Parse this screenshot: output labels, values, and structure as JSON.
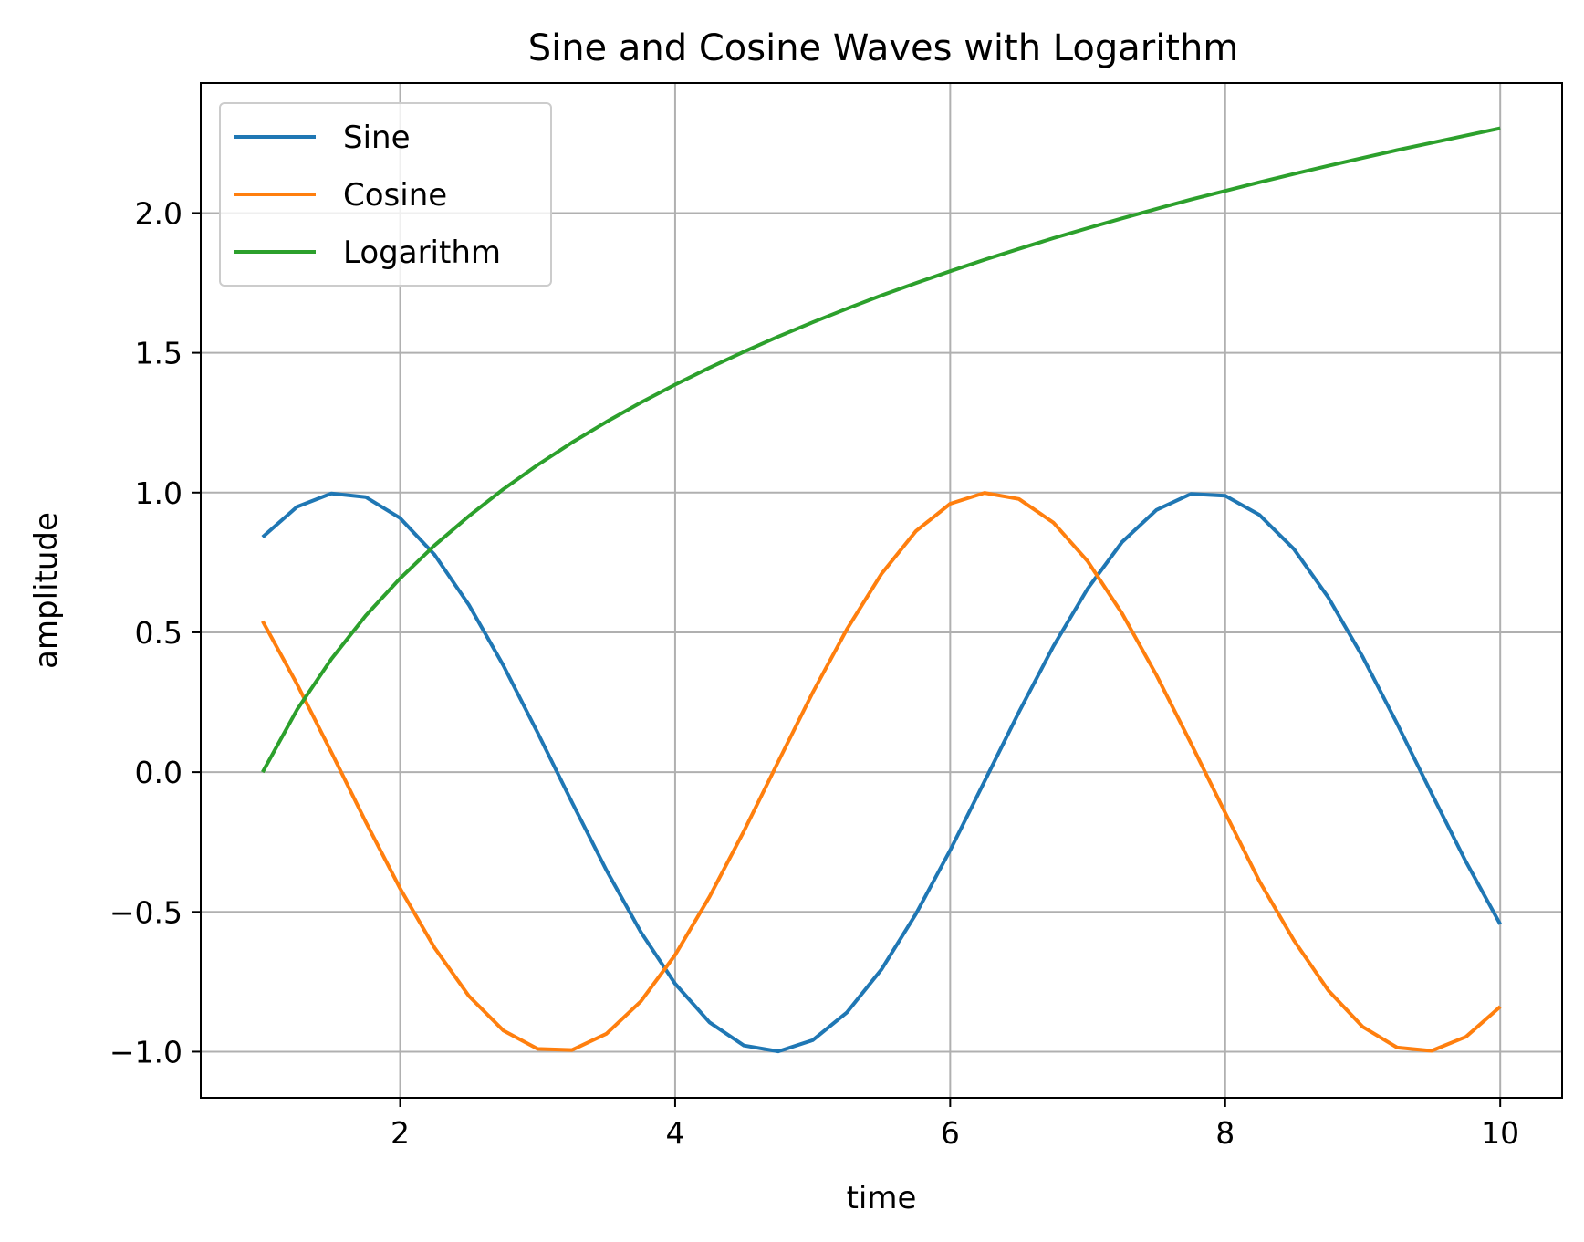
{
  "chart_data": {
    "type": "line",
    "title": "Sine and Cosine Waves with Logarithm",
    "xlabel": "time",
    "ylabel": "amplitude",
    "xlim": [
      0.55,
      10.45
    ],
    "ylim": [
      -1.165,
      2.465
    ],
    "grid": true,
    "legend_position": "upper-left",
    "x_ticks": [
      2,
      4,
      6,
      8,
      10
    ],
    "y_ticks": [
      -1.0,
      -0.5,
      0.0,
      0.5,
      1.0,
      1.5,
      2.0
    ],
    "x_tick_labels": [
      "2",
      "4",
      "6",
      "8",
      "10"
    ],
    "y_tick_labels": [
      "−1.0",
      "−0.5",
      "0.0",
      "0.5",
      "1.0",
      "1.5",
      "2.0"
    ],
    "x": [
      1.0,
      1.25,
      1.5,
      1.75,
      2.0,
      2.25,
      2.5,
      2.75,
      3.0,
      3.25,
      3.5,
      3.75,
      4.0,
      4.25,
      4.5,
      4.75,
      5.0,
      5.25,
      5.5,
      5.75,
      6.0,
      6.25,
      6.5,
      6.75,
      7.0,
      7.25,
      7.5,
      7.75,
      8.0,
      8.25,
      8.5,
      8.75,
      9.0,
      9.25,
      9.5,
      9.75,
      10.0
    ],
    "series": [
      {
        "name": "Sine",
        "color": "#1f77b4",
        "values": [
          0.841,
          0.949,
          0.997,
          0.984,
          0.909,
          0.778,
          0.598,
          0.382,
          0.141,
          -0.108,
          -0.351,
          -0.572,
          -0.757,
          -0.895,
          -0.978,
          -0.999,
          -0.959,
          -0.859,
          -0.706,
          -0.508,
          -0.279,
          -0.033,
          0.215,
          0.45,
          0.657,
          0.823,
          0.938,
          0.995,
          0.989,
          0.92,
          0.798,
          0.625,
          0.412,
          0.173,
          -0.075,
          -0.32,
          -0.544
        ]
      },
      {
        "name": "Cosine",
        "color": "#ff7f0e",
        "values": [
          0.54,
          0.315,
          0.071,
          -0.178,
          -0.416,
          -0.628,
          -0.801,
          -0.924,
          -0.99,
          -0.994,
          -0.936,
          -0.82,
          -0.654,
          -0.446,
          -0.211,
          0.038,
          0.284,
          0.512,
          0.709,
          0.862,
          0.96,
          0.999,
          0.977,
          0.893,
          0.754,
          0.568,
          0.347,
          0.104,
          -0.146,
          -0.391,
          -0.602,
          -0.781,
          -0.911,
          -0.985,
          -0.997,
          -0.947,
          -0.839
        ]
      },
      {
        "name": "Logarithm",
        "color": "#2ca02c",
        "values": [
          0.0,
          0.223,
          0.405,
          0.56,
          0.693,
          0.811,
          0.916,
          1.012,
          1.099,
          1.179,
          1.253,
          1.322,
          1.386,
          1.447,
          1.504,
          1.558,
          1.609,
          1.658,
          1.705,
          1.749,
          1.792,
          1.833,
          1.872,
          1.91,
          1.946,
          1.981,
          2.015,
          2.048,
          2.079,
          2.11,
          2.14,
          2.169,
          2.197,
          2.225,
          2.251,
          2.277,
          2.303
        ]
      }
    ]
  }
}
